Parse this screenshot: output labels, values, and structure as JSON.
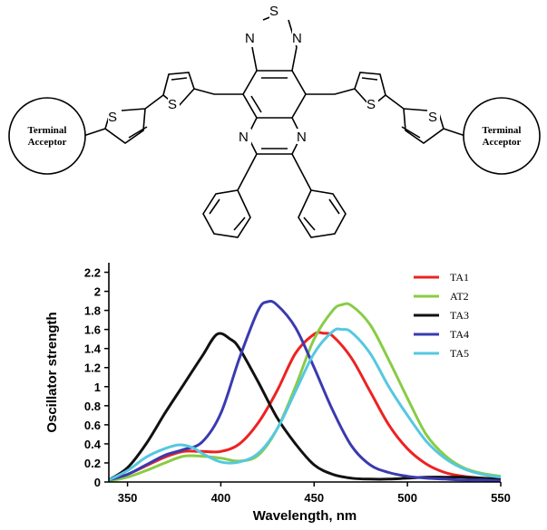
{
  "structure": {
    "atom_labels": [
      "S",
      "N",
      "N",
      "S",
      "S",
      "S",
      "S",
      "N",
      "N"
    ],
    "terminal_left": [
      "Terminal",
      "Acceptor"
    ],
    "terminal_right": [
      "Terminal",
      "Acceptor"
    ]
  },
  "chart_data": {
    "type": "line",
    "title": "",
    "xlabel": "Wavelength, nm",
    "ylabel": "Oscillator strength",
    "xlim": [
      340,
      550
    ],
    "ylim": [
      0,
      2.3
    ],
    "xticks": [
      350,
      400,
      450,
      500,
      550
    ],
    "yticks": [
      0,
      0.2,
      0.4,
      0.6,
      0.8,
      1,
      1.2,
      1.4,
      1.6,
      1.8,
      2,
      2.2
    ],
    "legend_position": "top-right",
    "grid": false,
    "series": [
      {
        "name": "TA1",
        "color": "#ee2222",
        "x": [
          340,
          350,
          360,
          370,
          380,
          390,
          400,
          410,
          420,
          430,
          440,
          450,
          455,
          460,
          470,
          480,
          490,
          500,
          510,
          520,
          530,
          540,
          550
        ],
        "y": [
          0.02,
          0.08,
          0.17,
          0.26,
          0.32,
          0.32,
          0.32,
          0.4,
          0.62,
          0.95,
          1.35,
          1.55,
          1.56,
          1.53,
          1.3,
          0.95,
          0.6,
          0.35,
          0.19,
          0.1,
          0.06,
          0.04,
          0.02
        ]
      },
      {
        "name": "AT2",
        "color": "#88cc44",
        "x": [
          340,
          350,
          360,
          370,
          380,
          390,
          400,
          410,
          420,
          430,
          440,
          450,
          460,
          465,
          470,
          480,
          490,
          500,
          510,
          520,
          530,
          540,
          550
        ],
        "y": [
          0.01,
          0.05,
          0.12,
          0.2,
          0.27,
          0.27,
          0.25,
          0.22,
          0.28,
          0.55,
          1.0,
          1.5,
          1.8,
          1.86,
          1.85,
          1.65,
          1.28,
          0.88,
          0.5,
          0.28,
          0.15,
          0.09,
          0.06
        ]
      },
      {
        "name": "TA3",
        "color": "#111111",
        "x": [
          340,
          350,
          360,
          370,
          380,
          390,
          398,
          405,
          410,
          420,
          430,
          440,
          450,
          460,
          470,
          480,
          490,
          500,
          510,
          520,
          530,
          540,
          550
        ],
        "y": [
          0.02,
          0.15,
          0.4,
          0.72,
          1.02,
          1.32,
          1.55,
          1.5,
          1.4,
          1.05,
          0.68,
          0.4,
          0.18,
          0.08,
          0.04,
          0.03,
          0.03,
          0.04,
          0.05,
          0.05,
          0.05,
          0.04,
          0.03
        ]
      },
      {
        "name": "TA4",
        "color": "#3a3ab0",
        "x": [
          340,
          350,
          360,
          370,
          380,
          390,
          400,
          410,
          420,
          425,
          430,
          440,
          450,
          460,
          470,
          480,
          490,
          500,
          510,
          520,
          530,
          540,
          550
        ],
        "y": [
          0.02,
          0.08,
          0.18,
          0.28,
          0.34,
          0.42,
          0.72,
          1.3,
          1.8,
          1.89,
          1.86,
          1.62,
          1.2,
          0.75,
          0.38,
          0.18,
          0.1,
          0.06,
          0.04,
          0.03,
          0.02,
          0.02,
          0.01
        ]
      },
      {
        "name": "TA5",
        "color": "#55c8e0",
        "x": [
          340,
          350,
          360,
          370,
          378,
          385,
          390,
          400,
          410,
          420,
          430,
          440,
          450,
          460,
          465,
          470,
          480,
          490,
          500,
          510,
          520,
          530,
          540,
          550
        ],
        "y": [
          0.02,
          0.12,
          0.26,
          0.35,
          0.39,
          0.36,
          0.3,
          0.21,
          0.21,
          0.3,
          0.55,
          0.95,
          1.35,
          1.58,
          1.6,
          1.57,
          1.35,
          1.0,
          0.7,
          0.43,
          0.25,
          0.14,
          0.08,
          0.05
        ]
      }
    ]
  }
}
